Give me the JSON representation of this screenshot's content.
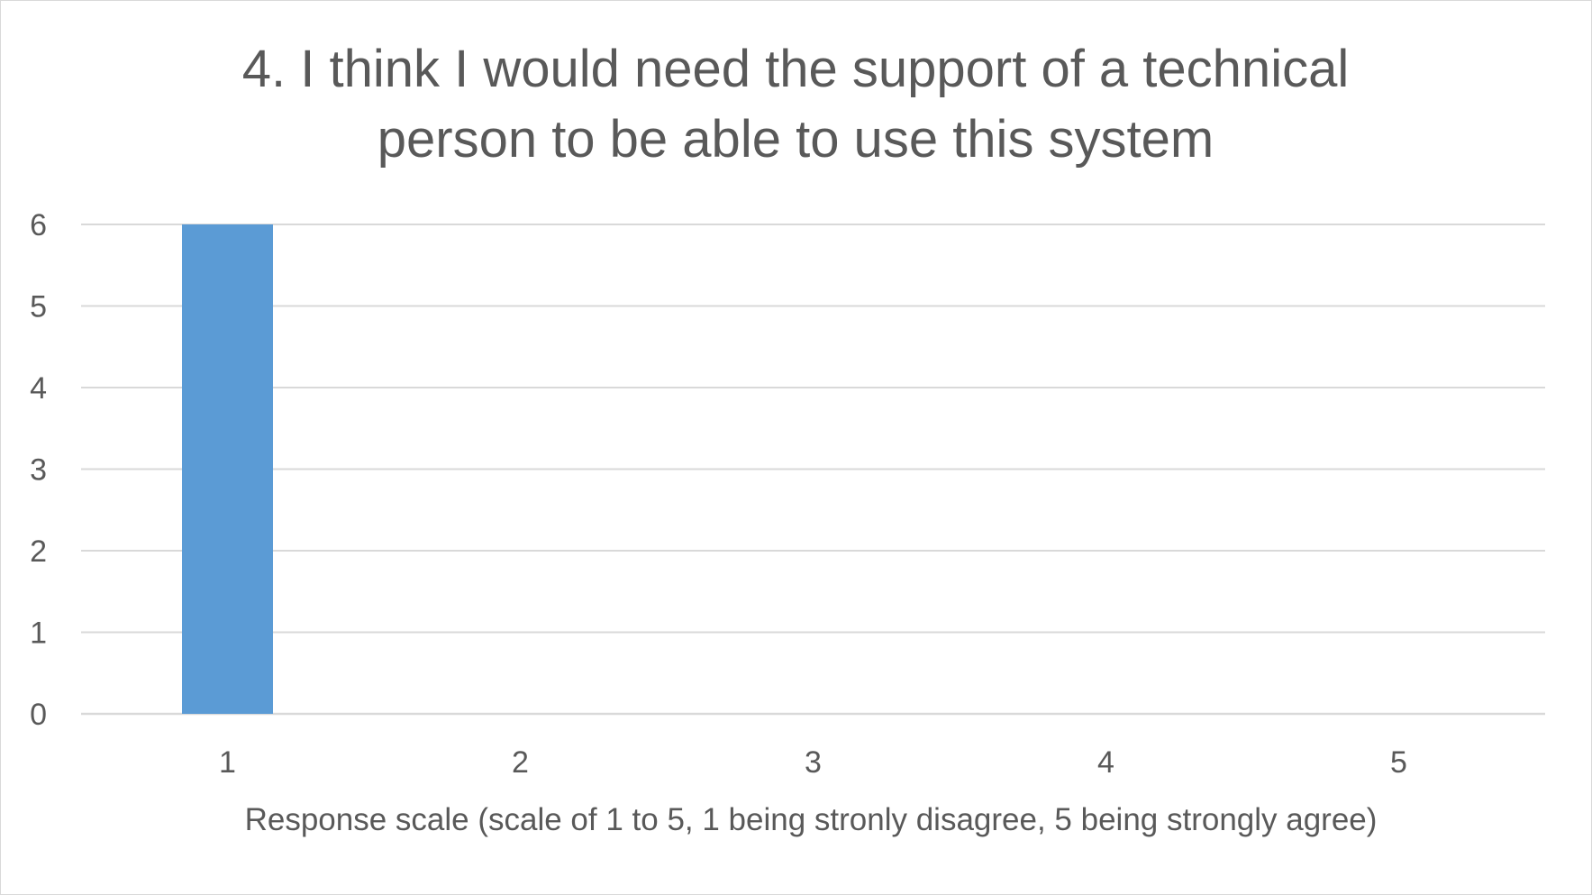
{
  "chart_data": {
    "type": "bar",
    "title_lines": [
      "4. I think I would need the support of a technical",
      "person to be able to use this system"
    ],
    "xlabel": "Response scale (scale of 1 to 5, 1 being stronly disagree, 5 being strongly agree)",
    "ylabel": "",
    "categories": [
      "1",
      "2",
      "3",
      "4",
      "5"
    ],
    "values": [
      6,
      0,
      0,
      0,
      0
    ],
    "ylim": [
      0,
      6
    ],
    "yticks": [
      "0",
      "1",
      "2",
      "3",
      "4",
      "5",
      "6"
    ],
    "grid": true,
    "legend": "none",
    "bar_color": "#5b9bd5",
    "grid_color": "#d9d9d9",
    "text_color": "#595959"
  }
}
